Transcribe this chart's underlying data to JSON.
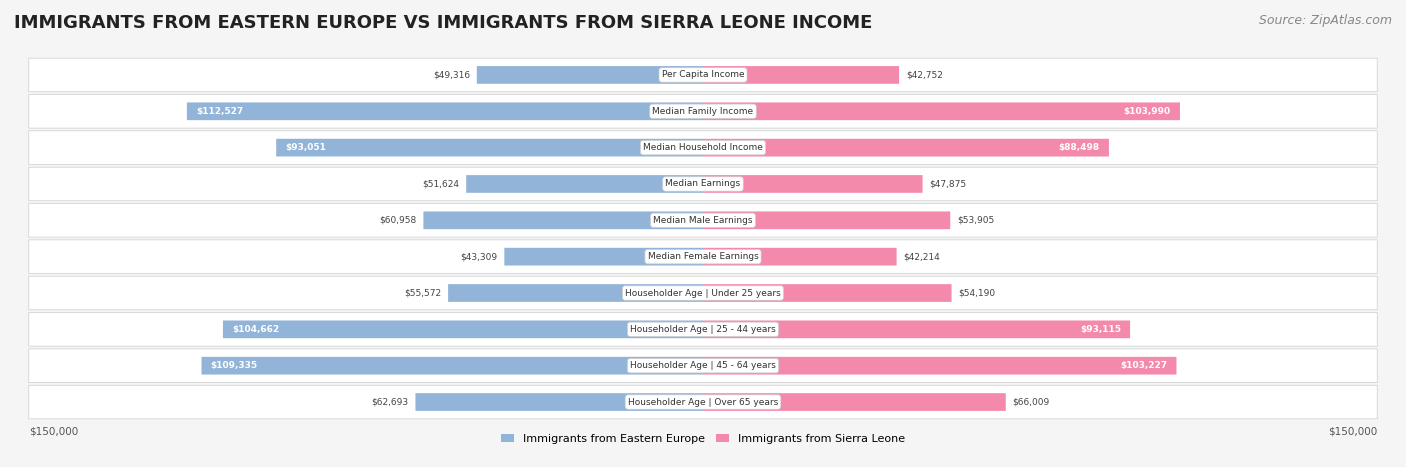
{
  "title": "IMMIGRANTS FROM EASTERN EUROPE VS IMMIGRANTS FROM SIERRA LEONE INCOME",
  "source": "Source: ZipAtlas.com",
  "categories": [
    "Per Capita Income",
    "Median Family Income",
    "Median Household Income",
    "Median Earnings",
    "Median Male Earnings",
    "Median Female Earnings",
    "Householder Age | Under 25 years",
    "Householder Age | 25 - 44 years",
    "Householder Age | 45 - 64 years",
    "Householder Age | Over 65 years"
  ],
  "eastern_europe": [
    49316,
    112527,
    93051,
    51624,
    60958,
    43309,
    55572,
    104662,
    109335,
    62693
  ],
  "sierra_leone": [
    42752,
    103990,
    88498,
    47875,
    53905,
    42214,
    54190,
    93115,
    103227,
    66009
  ],
  "eastern_europe_labels": [
    "$49,316",
    "$112,527",
    "$93,051",
    "$51,624",
    "$60,958",
    "$43,309",
    "$55,572",
    "$104,662",
    "$109,335",
    "$62,693"
  ],
  "sierra_leone_labels": [
    "$42,752",
    "$103,990",
    "$88,498",
    "$47,875",
    "$53,905",
    "$42,214",
    "$54,190",
    "$93,115",
    "$103,227",
    "$66,009"
  ],
  "max_val": 150000,
  "color_eastern": "#92b4d8",
  "color_sierra": "#f48aab",
  "color_eastern_dark": "#6699cc",
  "color_sierra_dark": "#f06090",
  "bg_color": "#f5f5f5",
  "row_bg": "#ffffff",
  "legend_eastern": "Immigrants from Eastern Europe",
  "legend_sierra": "Immigrants from Sierra Leone",
  "axis_label_left": "$150,000",
  "axis_label_right": "$150,000",
  "title_fontsize": 13,
  "source_fontsize": 9
}
